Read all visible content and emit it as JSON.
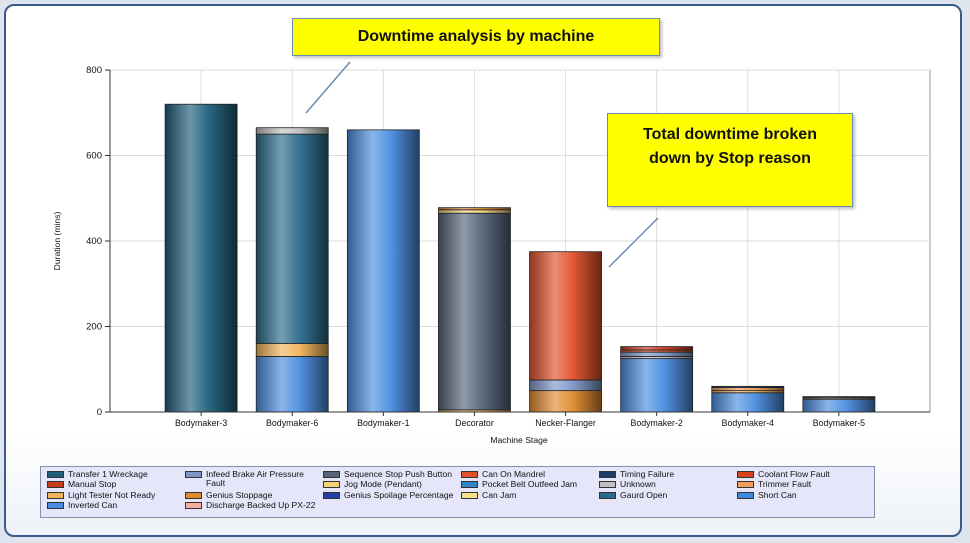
{
  "callouts": {
    "top": "Downtime analysis by machine",
    "right_line1": "Total downtime broken",
    "right_line2": "down by Stop reason"
  },
  "chart_data": {
    "type": "bar",
    "stacked": true,
    "title": "",
    "xlabel": "Machine Stage",
    "ylabel": "Duration (mins)",
    "ylim": [
      0,
      800
    ],
    "yticks": [
      0,
      200,
      400,
      600,
      800
    ],
    "grid": true,
    "legend_position": "bottom",
    "categories": [
      "Bodymaker-3",
      "Bodymaker-6",
      "Bodymaker-1",
      "Decorator",
      "Necker-Flanger",
      "Bodymaker-2",
      "Bodymaker-4",
      "Bodymaker-5"
    ],
    "series": [
      {
        "name": "Transfer 1 Wreckage",
        "color": "#1f5f7a",
        "values": [
          720,
          0,
          0,
          0,
          0,
          0,
          0,
          0
        ]
      },
      {
        "name": "Inverted Can",
        "color": "#4a8de0",
        "values": [
          0,
          130,
          660,
          0,
          0,
          125,
          45,
          30
        ]
      },
      {
        "name": "Light Tester Not Ready",
        "color": "#f2b45a",
        "values": [
          0,
          30,
          0,
          5,
          0,
          0,
          5,
          3
        ]
      },
      {
        "name": "Gaurd Open",
        "color": "#2a6b8a",
        "values": [
          0,
          490,
          0,
          0,
          0,
          0,
          0,
          0
        ]
      },
      {
        "name": "Unknown",
        "color": "#c0c0c0",
        "values": [
          0,
          15,
          0,
          0,
          0,
          5,
          0,
          0
        ]
      },
      {
        "name": "Sequence Stop Push Button",
        "color": "#56647a",
        "values": [
          0,
          0,
          0,
          460,
          0,
          0,
          0,
          0
        ]
      },
      {
        "name": "Jog Mode (Pendant)",
        "color": "#f5d27a",
        "values": [
          0,
          0,
          0,
          8,
          0,
          0,
          0,
          0
        ]
      },
      {
        "name": "Genius Stoppage",
        "color": "#e08a2e",
        "values": [
          0,
          0,
          0,
          5,
          50,
          0,
          0,
          0
        ]
      },
      {
        "name": "Infeed Brake Air Pressure Fault",
        "color": "#7f97c8",
        "values": [
          0,
          0,
          0,
          0,
          25,
          10,
          0,
          0
        ]
      },
      {
        "name": "Can On Mandrel",
        "color": "#e2502a",
        "values": [
          0,
          0,
          0,
          0,
          300,
          5,
          0,
          0
        ]
      },
      {
        "name": "Manual Stop",
        "color": "#c83a1e",
        "values": [
          0,
          0,
          0,
          0,
          0,
          8,
          0,
          0
        ]
      },
      {
        "name": "Trimmer Fault",
        "color": "#f5a05a",
        "values": [
          0,
          0,
          0,
          0,
          0,
          0,
          7,
          0
        ]
      },
      {
        "name": "Timing Failure",
        "color": "#1e3a66",
        "values": [
          0,
          0,
          0,
          0,
          0,
          0,
          3,
          3
        ]
      },
      {
        "name": "Pocket Belt Outfeed Jam",
        "color": "#2f86c8",
        "values": [
          0,
          0,
          0,
          0,
          0,
          0,
          0,
          0
        ]
      },
      {
        "name": "Coolant Flow Fault",
        "color": "#d8401e",
        "values": [
          0,
          0,
          0,
          0,
          0,
          0,
          0,
          0
        ]
      },
      {
        "name": "Genius Spoilage Percentage",
        "color": "#2440a8",
        "values": [
          0,
          0,
          0,
          0,
          0,
          0,
          0,
          0
        ]
      },
      {
        "name": "Can Jam",
        "color": "#f8e08a",
        "values": [
          0,
          0,
          0,
          0,
          0,
          0,
          0,
          0
        ]
      },
      {
        "name": "Short Can",
        "color": "#3c8ae0",
        "values": [
          0,
          0,
          0,
          0,
          0,
          0,
          0,
          0
        ]
      },
      {
        "name": "Discharge Backed Up PX-22",
        "color": "#f2b0a0",
        "values": [
          0,
          0,
          0,
          0,
          0,
          0,
          0,
          0
        ]
      }
    ]
  },
  "legend": [
    {
      "label": "Transfer 1 Wreckage",
      "color": "#1f5f7a"
    },
    {
      "label": "Infeed Brake Air Pressure Fault",
      "color": "#7f97c8"
    },
    {
      "label": "Sequence Stop Push Button",
      "color": "#56647a"
    },
    {
      "label": "Can On Mandrel",
      "color": "#e2502a"
    },
    {
      "label": "Timing Failure",
      "color": "#1e3a66"
    },
    {
      "label": "Coolant Flow Fault",
      "color": "#d8401e"
    },
    {
      "label": "Manual Stop",
      "color": "#c83a1e"
    },
    {
      "label": "",
      "color": ""
    },
    {
      "label": "Jog Mode (Pendant)",
      "color": "#f5d27a"
    },
    {
      "label": "Pocket Belt Outfeed Jam",
      "color": "#2f86c8"
    },
    {
      "label": "Unknown",
      "color": "#c0c0c0"
    },
    {
      "label": "Trimmer Fault",
      "color": "#f5a05a"
    },
    {
      "label": "Light Tester Not Ready",
      "color": "#f2b45a"
    },
    {
      "label": "Genius Stoppage",
      "color": "#e08a2e"
    },
    {
      "label": "Genius Spoilage Percentage",
      "color": "#2440a8"
    },
    {
      "label": "Can Jam",
      "color": "#f8e08a"
    },
    {
      "label": "Gaurd Open",
      "color": "#2a6b8a"
    },
    {
      "label": "Short Can",
      "color": "#3c8ae0"
    },
    {
      "label": "Inverted Can",
      "color": "#4a8de0"
    },
    {
      "label": "Discharge Backed Up PX-22",
      "color": "#f2b0a0"
    }
  ]
}
